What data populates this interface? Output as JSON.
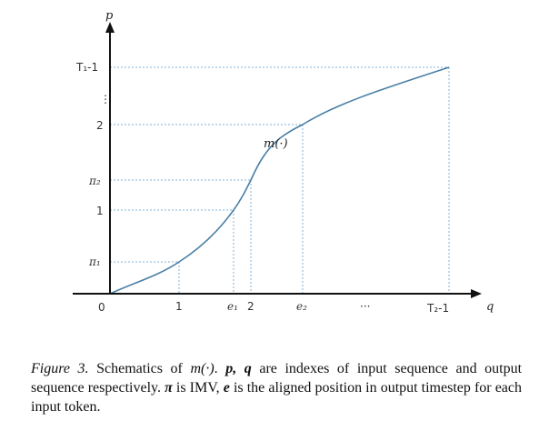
{
  "figure": {
    "y_axis_label": "p",
    "x_axis_label": "q",
    "origin_label": "0",
    "curve_label": "m(·)",
    "y_tick_labels": {
      "pi1": "π₁",
      "one": "1",
      "pi2": "π₂",
      "two": "2",
      "vdots": "⋮",
      "t1m1": "T₁-1"
    },
    "x_tick_labels": {
      "one": "1",
      "e1": "e₁",
      "two": "2",
      "e2": "e₂",
      "dots": "···",
      "t2m1": "T₂-1"
    },
    "colors": {
      "curve": "#4a7fa6",
      "guide": "#7fb2d8",
      "axis": "#111111"
    }
  },
  "caption": {
    "fig_num": "Figure 3.",
    "t1": " Schematics of ",
    "m_expr": "m(·)",
    "t2": ". ",
    "pq": "p, q",
    "t3": " are indexes of input sequence and output sequence respectively. ",
    "pi": "π",
    "t4": " is IMV, ",
    "e": "e",
    "t5": " is the aligned position in output timestep for each input token."
  }
}
